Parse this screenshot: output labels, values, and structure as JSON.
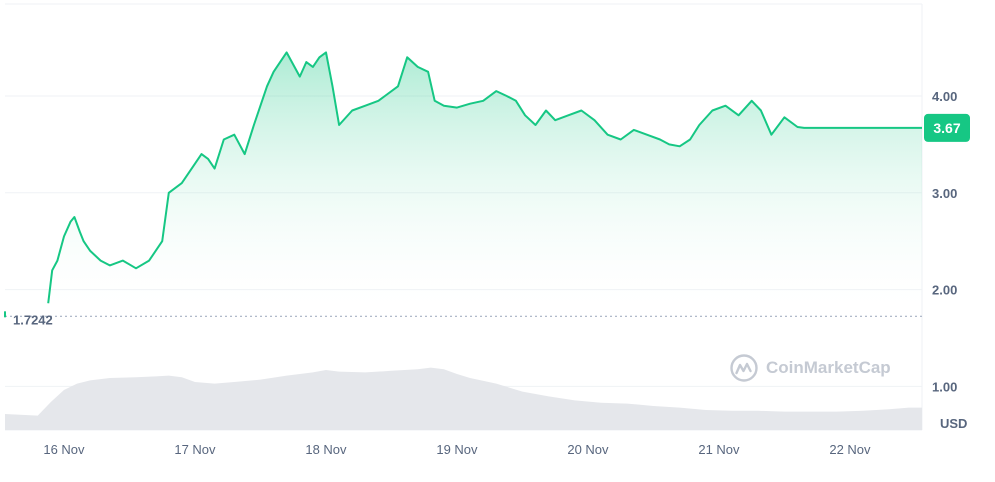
{
  "chart_data": {
    "type": "area",
    "title": "",
    "xlabel": "",
    "ylabel": "",
    "currency_label": "USD",
    "y_ticks": [
      "1.00",
      "2.00",
      "3.00",
      "4.00"
    ],
    "y_tick_values": [
      1,
      2,
      3,
      4
    ],
    "ylim": [
      0.55,
      4.95
    ],
    "x_tick_labels": [
      "16 Nov",
      "17 Nov",
      "18 Nov",
      "19 Nov",
      "20 Nov",
      "21 Nov",
      "22 Nov"
    ],
    "x_tick_positions_days": [
      0,
      1,
      2,
      3,
      4,
      5,
      6
    ],
    "xlim_days": [
      -0.45,
      6.55
    ],
    "open_price_label": "1.7242",
    "open_price": 1.7242,
    "current_price_label": "3.67",
    "current_price": 3.67,
    "price_series": {
      "x_days": [
        -0.12,
        -0.09,
        -0.05,
        0.0,
        0.05,
        0.08,
        0.12,
        0.15,
        0.2,
        0.28,
        0.35,
        0.45,
        0.55,
        0.65,
        0.75,
        0.8,
        0.9,
        1.0,
        1.05,
        1.1,
        1.15,
        1.22,
        1.3,
        1.38,
        1.45,
        1.55,
        1.6,
        1.7,
        1.8,
        1.85,
        1.9,
        1.95,
        2.0,
        2.05,
        2.1,
        2.2,
        2.3,
        2.4,
        2.45,
        2.55,
        2.62,
        2.7,
        2.78,
        2.83,
        2.9,
        3.0,
        3.1,
        3.2,
        3.3,
        3.38,
        3.45,
        3.52,
        3.6,
        3.68,
        3.75,
        3.85,
        3.95,
        4.05,
        4.15,
        4.25,
        4.35,
        4.45,
        4.55,
        4.62,
        4.7,
        4.78,
        4.85,
        4.95,
        5.05,
        5.15,
        5.25,
        5.32,
        5.4,
        5.5,
        5.6,
        5.65,
        5.75,
        5.85,
        5.92,
        6.0,
        6.1,
        6.2,
        6.3,
        6.35,
        6.38,
        6.42,
        6.5,
        6.55
      ],
      "y": [
        1.86,
        2.2,
        2.3,
        2.55,
        2.7,
        2.75,
        2.6,
        2.5,
        2.4,
        2.3,
        2.25,
        2.3,
        2.22,
        2.3,
        2.5,
        3.0,
        3.1,
        3.3,
        3.4,
        3.35,
        3.25,
        3.55,
        3.6,
        3.4,
        3.7,
        4.1,
        4.25,
        4.45,
        4.2,
        4.35,
        4.3,
        4.4,
        4.45,
        4.1,
        3.7,
        3.85,
        3.9,
        3.95,
        4.0,
        4.1,
        4.4,
        4.3,
        4.25,
        3.95,
        3.9,
        3.88,
        3.92,
        3.95,
        4.05,
        4.0,
        3.95,
        3.8,
        3.7,
        3.85,
        3.75,
        3.8,
        3.85,
        3.75,
        3.6,
        3.55,
        3.65,
        3.6,
        3.55,
        3.5,
        3.48,
        3.55,
        3.7,
        3.85,
        3.9,
        3.8,
        3.95,
        3.85,
        3.6,
        3.78,
        3.68,
        3.67,
        3.67,
        3.67,
        3.67,
        3.67,
        3.67,
        3.67,
        3.67,
        3.67,
        3.67,
        3.67,
        3.67,
        3.67
      ]
    },
    "volume_series": {
      "x_days": [
        -0.45,
        -0.2,
        -0.1,
        0.0,
        0.1,
        0.2,
        0.35,
        0.55,
        0.7,
        0.8,
        0.9,
        1.0,
        1.15,
        1.3,
        1.5,
        1.7,
        1.9,
        2.0,
        2.1,
        2.3,
        2.5,
        2.7,
        2.8,
        2.9,
        3.0,
        3.1,
        3.3,
        3.5,
        3.7,
        3.9,
        4.1,
        4.3,
        4.5,
        4.7,
        4.9,
        5.1,
        5.3,
        5.5,
        5.7,
        5.9,
        6.1,
        6.3,
        6.45,
        6.55
      ],
      "values": [
        0.2,
        0.18,
        0.35,
        0.5,
        0.58,
        0.62,
        0.65,
        0.66,
        0.67,
        0.68,
        0.66,
        0.6,
        0.58,
        0.6,
        0.63,
        0.68,
        0.72,
        0.75,
        0.73,
        0.72,
        0.74,
        0.76,
        0.78,
        0.76,
        0.7,
        0.65,
        0.58,
        0.48,
        0.42,
        0.37,
        0.34,
        0.33,
        0.3,
        0.28,
        0.25,
        0.24,
        0.24,
        0.23,
        0.23,
        0.23,
        0.24,
        0.26,
        0.28,
        0.28
      ]
    },
    "legend": "none",
    "grid": true,
    "line_color": "#16c784",
    "fill_top_color": "#16c784",
    "fill_bottom_color": "#ffffff",
    "price_tag_color": "#16c784",
    "volume_color": "#e5e7eb"
  },
  "watermark": {
    "text": "CoinMarketCap",
    "icon": "coinmarketcap-logo-icon"
  }
}
